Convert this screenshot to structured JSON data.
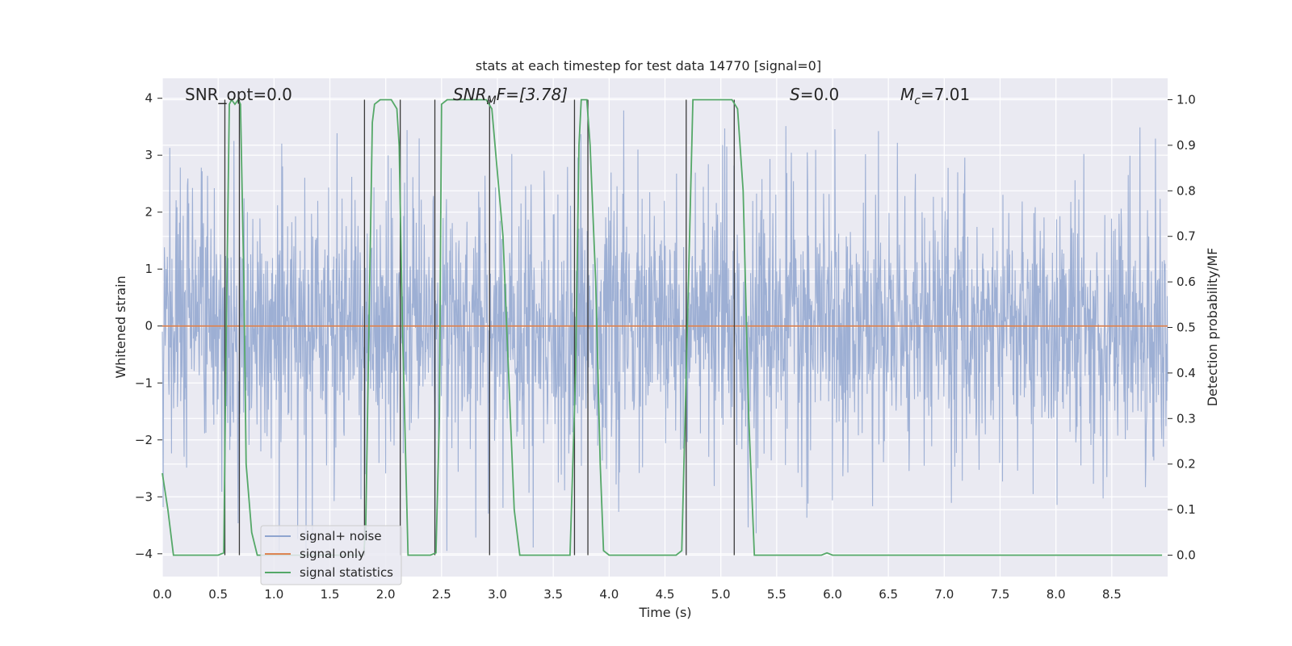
{
  "chart_data": {
    "type": "line",
    "title": "stats at each timestep for test data 14770 [signal=0]",
    "xlabel": "Time (s)",
    "ylabel_left": "Whitened strain",
    "ylabel_right": "Detection probability/MF",
    "xlim": [
      0.0,
      9.0
    ],
    "ylim_left": [
      -4.4,
      4.35
    ],
    "ylim_right": [
      -0.047,
      1.047
    ],
    "x_ticks": [
      "0.0",
      "0.5",
      "1.0",
      "1.5",
      "2.0",
      "2.5",
      "3.0",
      "3.5",
      "4.0",
      "4.5",
      "5.0",
      "5.5",
      "6.0",
      "6.5",
      "7.0",
      "7.5",
      "8.0",
      "8.5"
    ],
    "y_ticks_left": [
      "−4",
      "−3",
      "−2",
      "−1",
      "0",
      "1",
      "2",
      "3",
      "4"
    ],
    "y_ticks_right": [
      "0.0",
      "0.1",
      "0.2",
      "0.3",
      "0.4",
      "0.5",
      "0.6",
      "0.7",
      "0.8",
      "0.9",
      "1.0"
    ],
    "grid": true,
    "legend_position": "lower-left",
    "annotations": {
      "snr_opt": "SNR_opt=0.0",
      "snr_mf_prefix": "SNR",
      "snr_mf_sub": "M",
      "snr_mf_rest": "F=[3.78]",
      "s_var": "S",
      "s_rest": "=0.0",
      "mc_var": "M",
      "mc_sub": "c",
      "mc_rest": "=7.01"
    },
    "series": [
      {
        "name": "signal+ noise",
        "color": "#8fa5cf",
        "description_of_values": "noise-dominated whitened strain, amplitude mostly within ±1.6, peaks to about ±3.9",
        "amplitude_core": 1.6,
        "amplitude_max": 3.95
      },
      {
        "name": "signal only",
        "color": "#dd8452",
        "constant_value": 0
      },
      {
        "name": "signal statistics",
        "color": "#55a868",
        "axis": "right",
        "x": [
          0.0,
          0.05,
          0.1,
          0.5,
          0.55,
          0.57,
          0.6,
          0.62,
          0.65,
          0.68,
          0.7,
          0.73,
          0.75,
          0.8,
          0.85,
          1.8,
          1.82,
          1.85,
          1.88,
          1.9,
          1.95,
          2.05,
          2.1,
          2.12,
          2.15,
          2.2,
          2.4,
          2.45,
          2.48,
          2.5,
          2.55,
          2.9,
          2.95,
          3.05,
          3.1,
          3.15,
          3.2,
          3.65,
          3.7,
          3.73,
          3.75,
          3.8,
          3.83,
          3.88,
          3.92,
          3.95,
          4.0,
          4.6,
          4.65,
          4.7,
          4.75,
          5.1,
          5.15,
          5.2,
          5.25,
          5.3,
          5.9,
          5.95,
          6.0,
          8.95
        ],
        "values": [
          0.18,
          0.1,
          0.0,
          0.0,
          0.005,
          0.45,
          0.99,
          1.0,
          0.99,
          1.0,
          0.99,
          0.6,
          0.2,
          0.05,
          0.0,
          0.0,
          0.05,
          0.5,
          0.95,
          0.99,
          1.0,
          1.0,
          0.98,
          0.9,
          0.5,
          0.0,
          0.0,
          0.005,
          0.3,
          0.99,
          1.0,
          1.0,
          0.98,
          0.7,
          0.4,
          0.1,
          0.0,
          0.0,
          0.4,
          0.9,
          1.0,
          1.0,
          0.9,
          0.6,
          0.2,
          0.01,
          0.0,
          0.0,
          0.01,
          0.5,
          1.0,
          1.0,
          0.98,
          0.8,
          0.3,
          0.0,
          0.0,
          0.005,
          0.0,
          0.0
        ]
      }
    ],
    "vertical_lines_x": [
      0.56,
      0.69,
      1.81,
      2.13,
      2.44,
      2.93,
      3.69,
      3.81,
      4.69,
      5.12
    ]
  }
}
